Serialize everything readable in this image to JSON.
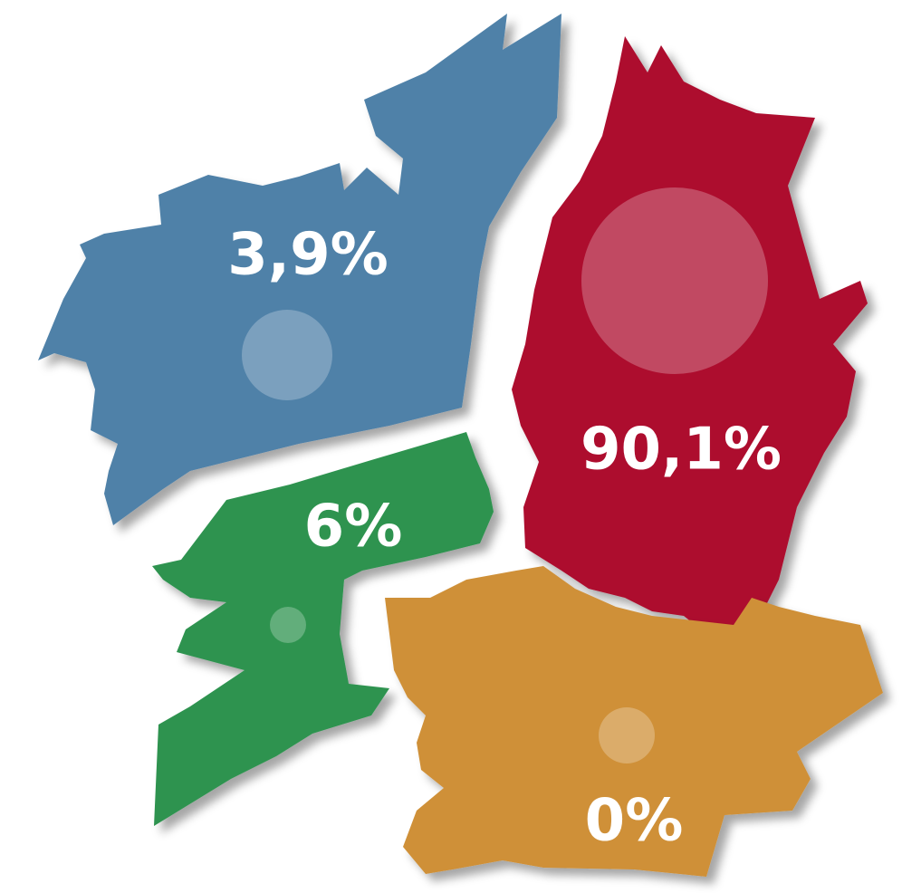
{
  "regions": [
    {
      "value": 3.9,
      "value_label": "3,9%",
      "color": "#4f81a8"
    },
    {
      "value": 90.1,
      "value_label": "90,1%",
      "color": "#ad0a2d"
    },
    {
      "value": 6,
      "value_label": "6%",
      "color": "#2e9350"
    },
    {
      "value": 0,
      "value_label": "0%",
      "color": "#cf9038"
    }
  ]
}
